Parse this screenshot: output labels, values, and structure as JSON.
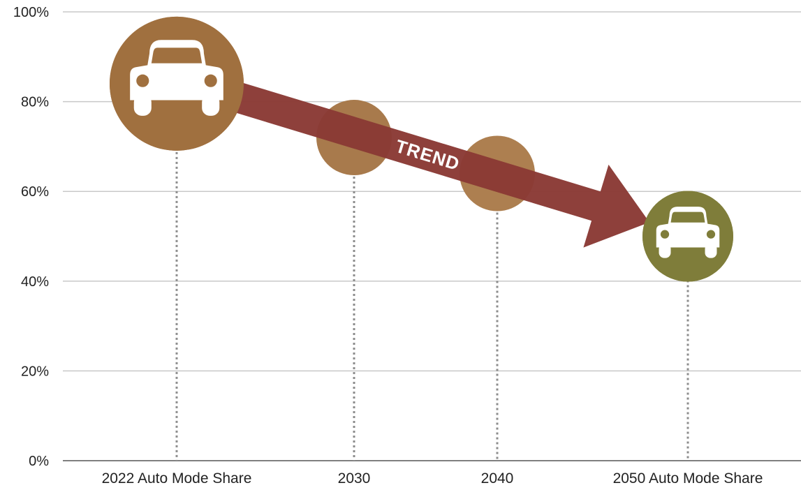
{
  "chart_data": {
    "type": "scatter",
    "categories": [
      "2022 Auto Mode Share",
      "2030",
      "2040",
      "2050 Auto Mode Share"
    ],
    "values": [
      84,
      72,
      64,
      50
    ],
    "point_colors": [
      "#A0703F",
      "#A87A4C",
      "#AD7F50",
      "#7F7D3A"
    ],
    "point_icons": [
      "car-icon",
      null,
      null,
      "car-icon"
    ],
    "y_ticks": [
      "0%",
      "20%",
      "40%",
      "60%",
      "80%",
      "100%"
    ],
    "y_tick_values": [
      0,
      20,
      40,
      60,
      80,
      100
    ],
    "ylim": [
      0,
      100
    ],
    "grid": true,
    "annotation": {
      "text": "TREND",
      "color": "#8A3A35",
      "from_value": 84,
      "to_value": 50
    }
  }
}
